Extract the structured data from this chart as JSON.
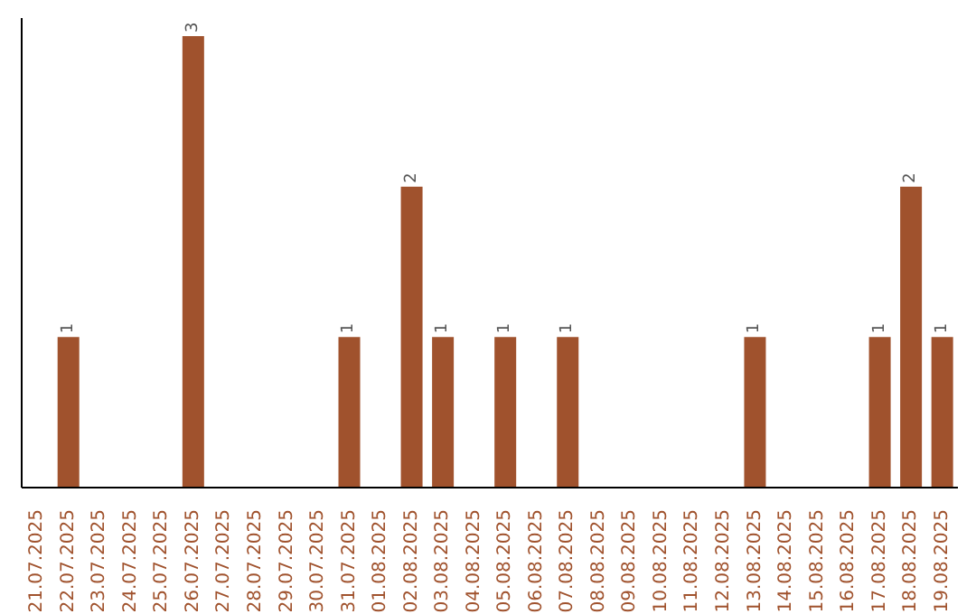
{
  "chart_data": {
    "type": "bar",
    "categories": [
      "21.07.2025",
      "22.07.2025",
      "23.07.2025",
      "24.07.2025",
      "25.07.2025",
      "26.07.2025",
      "27.07.2025",
      "28.07.2025",
      "29.07.2025",
      "30.07.2025",
      "31.07.2025",
      "01.08.2025",
      "02.08.2025",
      "03.08.2025",
      "04.08.2025",
      "05.08.2025",
      "06.08.2025",
      "07.08.2025",
      "08.08.2025",
      "09.08.2025",
      "10.08.2025",
      "11.08.2025",
      "12.08.2025",
      "13.08.2025",
      "14.08.2025",
      "15.08.2025",
      "16.08.2025",
      "17.08.2025",
      "18.08.2025",
      "19.08.2025"
    ],
    "values": [
      0,
      1,
      0,
      0,
      0,
      3,
      0,
      0,
      0,
      0,
      1,
      0,
      2,
      1,
      0,
      1,
      0,
      1,
      0,
      0,
      0,
      0,
      0,
      1,
      0,
      0,
      0,
      1,
      2,
      1
    ],
    "value_labels": [
      null,
      "1",
      null,
      null,
      null,
      "3",
      null,
      null,
      null,
      null,
      "1",
      null,
      "2",
      "1",
      null,
      "1",
      null,
      "1",
      null,
      null,
      null,
      null,
      null,
      "1",
      null,
      null,
      null,
      "1",
      "2",
      "1"
    ],
    "color": "#a0522d"
  }
}
